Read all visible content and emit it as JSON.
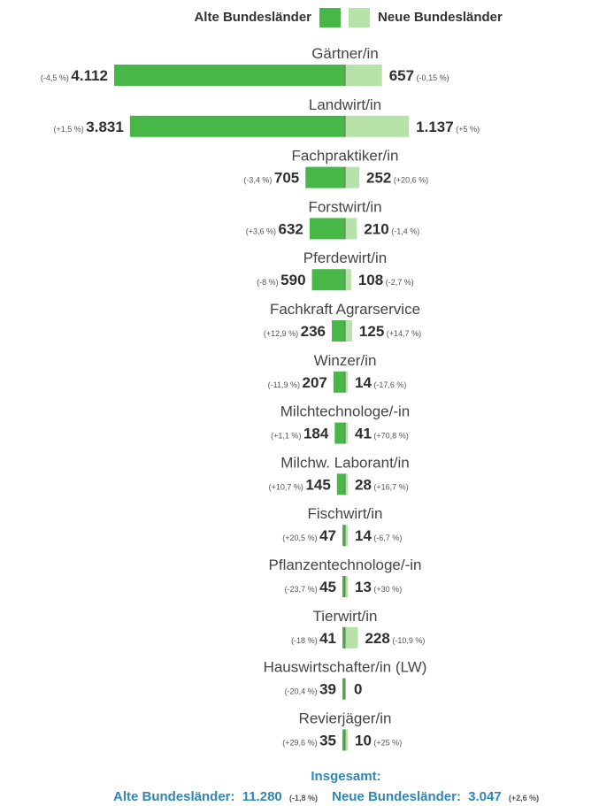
{
  "legend": {
    "west_label": "Alte Bundesländer",
    "east_label": "Neue Bundesländer"
  },
  "colors": {
    "west": "#47b847",
    "east": "#b6e2a8",
    "divider": "#6a6a6a",
    "total": "#2e87b5"
  },
  "chart_data": {
    "type": "bar",
    "orientation": "diverging-horizontal",
    "categories": [
      "Gärtner/in",
      "Landwirt/in",
      "Fachpraktiker/in",
      "Forstwirt/in",
      "Pferdewirt/in",
      "Fachkraft Agrarservice",
      "Winzer/in",
      "Milchtechnologe/-in",
      "Milchw. Laborant/in",
      "Fischwirt/in",
      "Pflanzentechnologe/-in",
      "Tierwirt/in",
      "Hauswirtschafter/in (LW)",
      "Revierjäger/in"
    ],
    "series": [
      {
        "name": "Alte Bundesländer",
        "values": [
          4112,
          3831,
          705,
          632,
          590,
          236,
          207,
          184,
          145,
          47,
          45,
          41,
          39,
          35
        ],
        "labels": [
          "4.112",
          "3.831",
          "705",
          "632",
          "590",
          "236",
          "207",
          "184",
          "145",
          "47",
          "45",
          "41",
          "39",
          "35"
        ],
        "changes": [
          "(-4,5 %)",
          "(+1,5 %)",
          "(-3,4 %)",
          "(+3,6 %)",
          "(-8 %)",
          "(+12,9 %)",
          "(-11,9 %)",
          "(+1,1 %)",
          "(+10,7 %)",
          "(+20,5 %)",
          "(-23,7 %)",
          "(-18 %)",
          "(-20,4 %)",
          "(+29,6 %)"
        ]
      },
      {
        "name": "Neue Bundesländer",
        "values": [
          657,
          1137,
          252,
          210,
          108,
          125,
          14,
          41,
          28,
          14,
          13,
          228,
          0,
          10
        ],
        "labels": [
          "657",
          "1.137",
          "252",
          "210",
          "108",
          "125",
          "14",
          "41",
          "28",
          "14",
          "13",
          "228",
          "0",
          "10"
        ],
        "changes": [
          "(-0,15 %)",
          "(+5 %)",
          "(+20,6 %)",
          "(-1,4 %)",
          "(-2,7 %)",
          "(+14,7 %)",
          "(-17,6 %)",
          "(+70,8 %)",
          "(+16,7 %)",
          "(-6,7 %)",
          "(+30 %)",
          "(-10,9 %)",
          "",
          "(+25 %)"
        ]
      }
    ],
    "total": {
      "title": "Insgesamt:",
      "west_label": "Alte Bundesländer:",
      "west_value": "11.280",
      "west_change": "(-1,8 %)",
      "east_label": "Neue Bundesländer:",
      "east_value": "3.047",
      "east_change": "(+2,6 %)"
    }
  }
}
